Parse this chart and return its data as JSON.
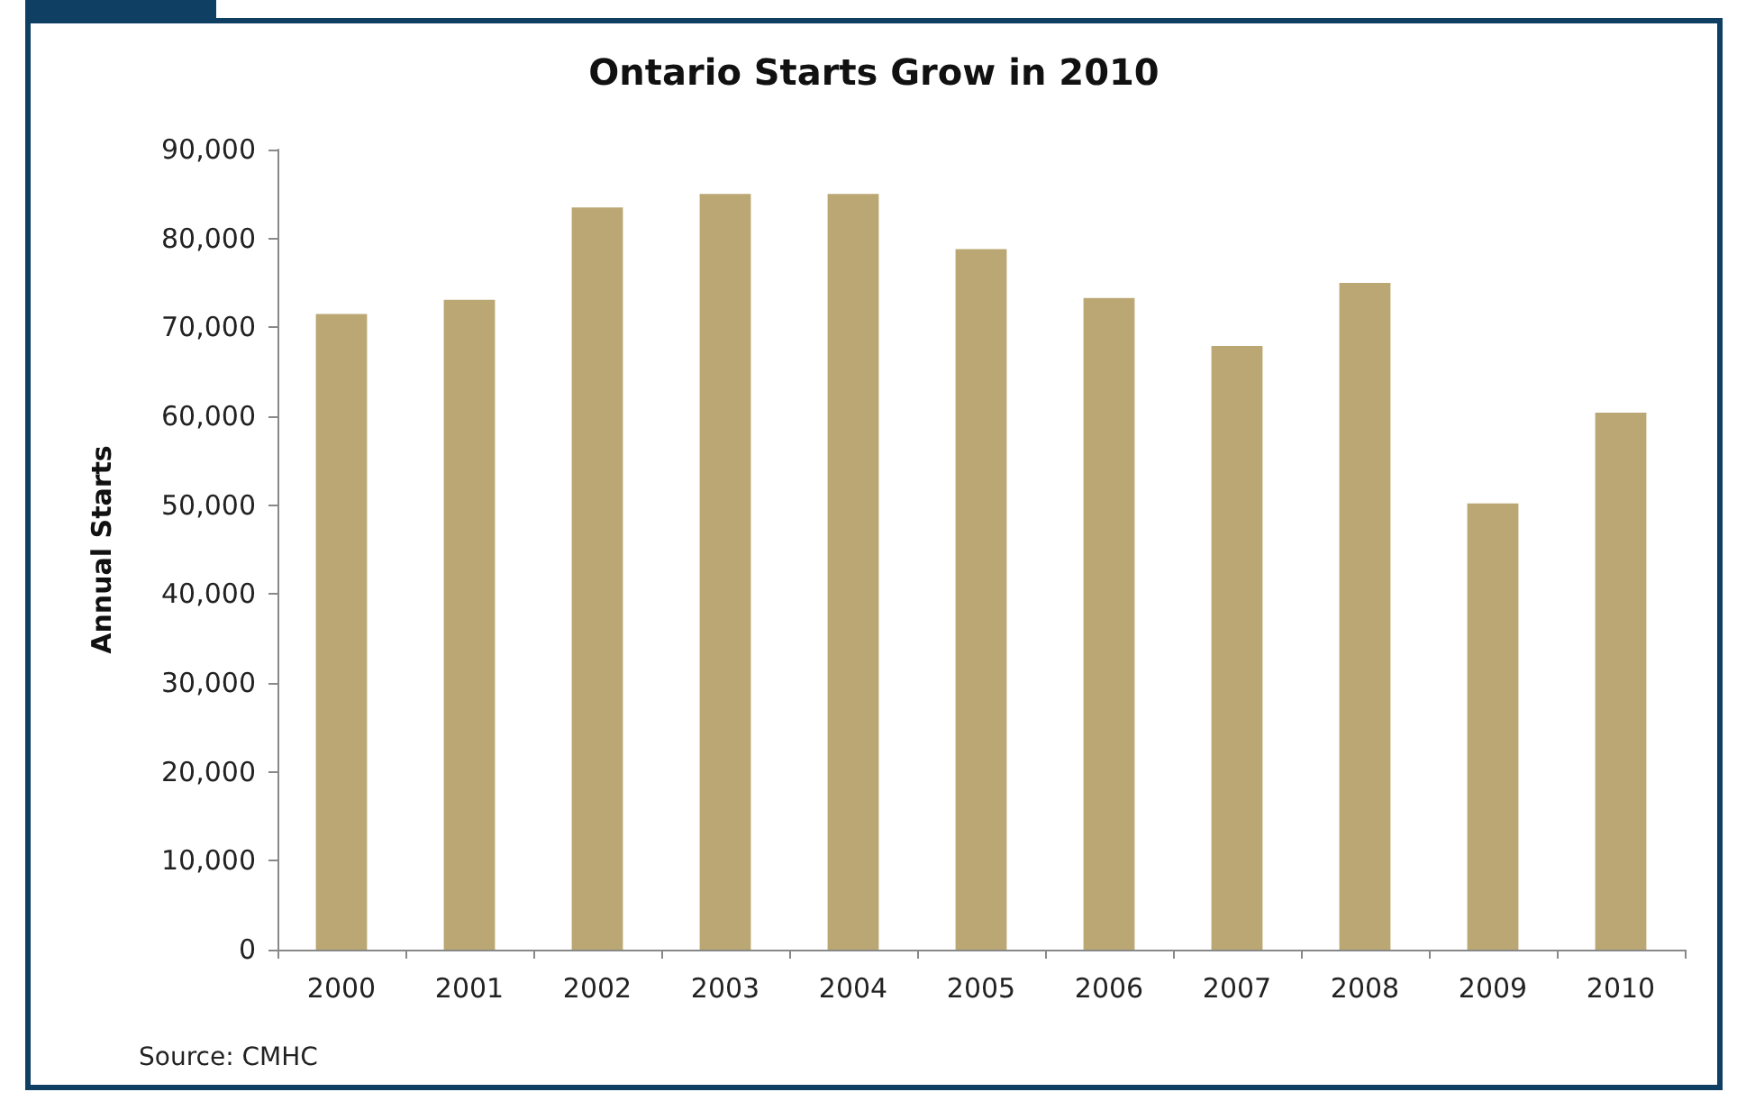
{
  "chart_data": {
    "type": "bar",
    "title": "Ontario Starts Grow in 2010",
    "ylabel": "Annual Starts",
    "categories": [
      "2000",
      "2001",
      "2002",
      "2003",
      "2004",
      "2005",
      "2006",
      "2007",
      "2008",
      "2009",
      "2010"
    ],
    "values": [
      71500,
      73100,
      83500,
      85000,
      85000,
      78800,
      73300,
      67900,
      75000,
      50200,
      60400
    ],
    "color": "#bba773",
    "ylim": [
      0,
      90000
    ],
    "yticks": [
      0,
      {
        "value": 10000,
        "label": "10,000"
      },
      {
        "value": 20000,
        "label": "20,000"
      },
      {
        "value": 30000,
        "label": "30,000"
      },
      {
        "value": 40000,
        "label": "40,000"
      },
      {
        "value": 50000,
        "label": "50,000"
      },
      {
        "value": 60000,
        "label": "60,000"
      },
      {
        "value": 70000,
        "label": "70,000"
      },
      {
        "value": 80000,
        "label": "80,000"
      },
      {
        "value": 90000,
        "label": "90,000"
      }
    ],
    "grid": false,
    "annotations": [
      "Source: CMHC"
    ]
  }
}
